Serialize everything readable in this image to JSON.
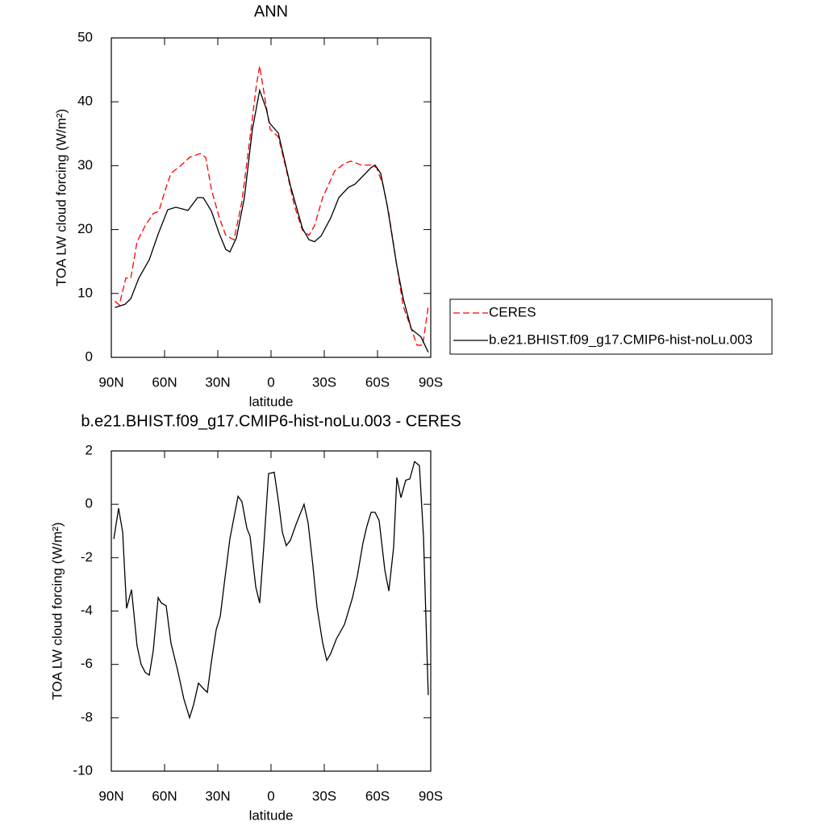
{
  "chart_data": [
    {
      "type": "line",
      "title": "ANN",
      "xlabel": "latitude",
      "ylabel": "TOA LW cloud forcing (W/m²)",
      "xlim": [
        90,
        -90
      ],
      "xticks": [
        {
          "value": 90,
          "label": "90N"
        },
        {
          "value": 60,
          "label": "60N"
        },
        {
          "value": 30,
          "label": "30N"
        },
        0,
        {
          "value": -30,
          "label": "30S"
        },
        {
          "value": -60,
          "label": "60S"
        },
        {
          "value": -90,
          "label": "90S"
        }
      ],
      "ylim": [
        0,
        50
      ],
      "yticks": [
        0,
        10,
        20,
        30,
        40,
        50
      ],
      "legend": "right",
      "series": [
        {
          "name": "CERES",
          "color": "#ff0000",
          "dash": "dashed",
          "x": [
            88,
            85.5,
            81.8,
            79,
            75.5,
            70.9,
            66.4,
            63.2,
            59.5,
            56.4,
            50.5,
            45.9,
            40,
            36.8,
            33.6,
            29.1,
            25.5,
            20.9,
            16.4,
            11.8,
            8.2,
            6.4,
            3.6,
            0.5,
            -4.1,
            -8.6,
            -13.2,
            -17.7,
            -21.4,
            -24.5,
            -29.1,
            -35.9,
            -41.8,
            -45,
            -50.9,
            -56.4,
            -59.5,
            -63.2,
            -66.4,
            -70.9,
            -74.5,
            -79.1,
            -82.3,
            -85.5,
            -88.6
          ],
          "values": [
            8.8,
            8.2,
            12.4,
            12.4,
            18.1,
            20.6,
            22.5,
            22.9,
            26.3,
            28.8,
            30.1,
            31.3,
            31.9,
            31.3,
            26.3,
            21.8,
            19.1,
            18.4,
            24.4,
            34.5,
            42.7,
            45.6,
            40.8,
            35.7,
            34.5,
            29.4,
            23.7,
            19.9,
            19.1,
            20.6,
            25,
            29.2,
            30.4,
            30.7,
            30.1,
            30.1,
            29.7,
            26.9,
            22.5,
            14.3,
            8,
            4.4,
            1.9,
            1.9,
            8
          ]
        },
        {
          "name": "b.e21.BHIST.f09_g17.CMIP6-hist-noLu.003",
          "color": "#000000",
          "dash": "solid",
          "x": [
            88,
            82.3,
            79,
            74.5,
            68.6,
            63.6,
            58.2,
            53.6,
            46.8,
            41.4,
            38.2,
            33.6,
            29.1,
            25.5,
            23.2,
            19.5,
            15,
            10.5,
            6.4,
            2.7,
            0.9,
            -4.1,
            -10.9,
            -17.7,
            -21.4,
            -24.5,
            -28.2,
            -33.6,
            -38.2,
            -43.6,
            -47.3,
            -56.4,
            -58.6,
            -61.8,
            -65.5,
            -70.9,
            -74.5,
            -79.1,
            -84.5,
            -88.6
          ],
          "values": [
            7.8,
            8.3,
            9.2,
            12.4,
            15.3,
            19.3,
            23.1,
            23.5,
            23,
            25,
            25,
            22.9,
            19.3,
            16.9,
            16.5,
            18.7,
            25,
            35.7,
            41.8,
            38.9,
            36.7,
            35.1,
            26.9,
            20.2,
            18.4,
            18.1,
            19,
            21.8,
            25,
            26.6,
            27.1,
            29.7,
            30.1,
            28.8,
            23.7,
            14.3,
            9.2,
            4.4,
            3.2,
            0.8
          ]
        }
      ]
    },
    {
      "type": "line",
      "title": "b.e21.BHIST.f09_g17.CMIP6-hist-noLu.003 - CERES",
      "xlabel": "latitude",
      "ylabel": "TOA LW cloud forcing (W/m²)",
      "xlim": [
        90,
        -90
      ],
      "xticks": [
        {
          "value": 90,
          "label": "90N"
        },
        {
          "value": 60,
          "label": "60N"
        },
        {
          "value": 30,
          "label": "30N"
        },
        0,
        {
          "value": -30,
          "label": "30S"
        },
        {
          "value": -60,
          "label": "60S"
        },
        {
          "value": -90,
          "label": "90S"
        }
      ],
      "ylim": [
        -10,
        2
      ],
      "yticks": [
        -10,
        -8,
        -6,
        -4,
        -2,
        0,
        2
      ],
      "color": "#000000",
      "x": [
        88.6,
        85.9,
        83.6,
        81.4,
        78.6,
        75.5,
        73.2,
        70.9,
        68.6,
        66.4,
        63.6,
        61.8,
        59.1,
        56.4,
        52.7,
        49.1,
        45.9,
        43.6,
        40.9,
        38.2,
        35.9,
        33.6,
        30.9,
        28.6,
        26.4,
        23.2,
        20.9,
        18.6,
        16.4,
        13.6,
        11.8,
        8.6,
        6.4,
        4.1,
        1.4,
        -1.8,
        -4.1,
        -6.4,
        -8.6,
        -10.9,
        -14.1,
        -18.6,
        -20.9,
        -23.6,
        -25.9,
        -29.1,
        -31.4,
        -33.6,
        -36.8,
        -41.4,
        -45.9,
        -48.6,
        -51.8,
        -54.1,
        -56.4,
        -58.6,
        -60.9,
        -64.1,
        -66.4,
        -69.1,
        -70.9,
        -73.2,
        -75.9,
        -78.2,
        -80.9,
        -83.6,
        -85.9,
        -88.6
      ],
      "values": [
        -1.3,
        -0.15,
        -1.05,
        -3.9,
        -3.2,
        -5.3,
        -6,
        -6.3,
        -6.4,
        -5.5,
        -3.5,
        -3.7,
        -3.8,
        -5.2,
        -6.2,
        -7.3,
        -8,
        -7.5,
        -6.7,
        -6.9,
        -7.05,
        -5.9,
        -4.7,
        -4.2,
        -3,
        -1.3,
        -0.5,
        0.3,
        0.1,
        -0.9,
        -1.2,
        -3.1,
        -3.7,
        -1.6,
        1.15,
        1.2,
        0.15,
        -1.05,
        -1.55,
        -1.35,
        -0.75,
        0,
        -0.7,
        -2.3,
        -3.85,
        -5.2,
        -5.85,
        -5.6,
        -5.05,
        -4.5,
        -3.5,
        -2.7,
        -1.45,
        -0.8,
        -0.3,
        -0.3,
        -0.6,
        -2.45,
        -3.25,
        -1.6,
        1,
        0.25,
        0.9,
        0.95,
        1.6,
        1.45,
        -1.2,
        -7.15
      ]
    }
  ]
}
